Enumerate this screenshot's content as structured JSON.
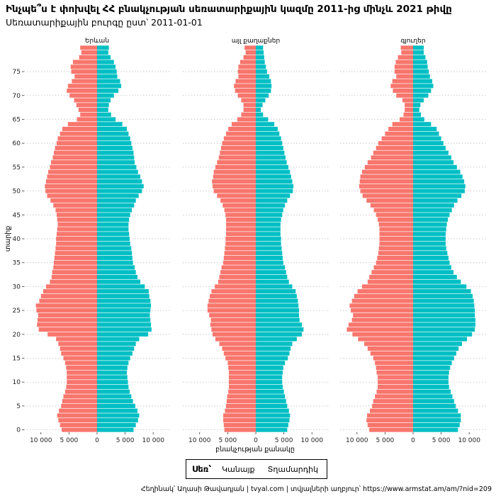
{
  "title": "Ինչպե՞ս է փոխվել ՀՀ բնակչության սեռատարիքային կազմը 2011-ից մինչև 2021 թիվը",
  "subtitle": "Սեռատարիքային բուրգը ըստ՝ 2011-01-01",
  "caption": "Հեղինակ՝ Աղասի Թավադյան | tvyal.com | տվյալների աղբյուր՝ https://www.armstat.am/am/?nid=209",
  "legend": {
    "title": "Սեռ՝",
    "items": [
      {
        "label": "Կանայք",
        "color": "#F8766D"
      },
      {
        "label": "Տղամարդիկ",
        "color": "#00BFC4"
      }
    ]
  },
  "chart_data": {
    "type": "bar",
    "orientation": "horizontal",
    "xlabel": "բնակչության քանակը",
    "ylabel": "տարիք",
    "xlim": [
      -13000,
      13000
    ],
    "x_ticks": [
      -10000,
      -5000,
      0,
      5000,
      10000
    ],
    "x_tick_labels": [
      "10 000",
      "5 000",
      "0",
      "5 000",
      "10 000"
    ],
    "y_ticks": [
      0,
      5,
      10,
      15,
      20,
      25,
      30,
      35,
      40,
      45,
      50,
      55,
      60,
      65,
      70,
      75
    ],
    "y_tick_labels": [
      "0",
      "5",
      "10",
      "15",
      "20",
      "25",
      "30",
      "35",
      "40",
      "45",
      "50",
      "55",
      "60",
      "65",
      "70",
      "75"
    ],
    "ages": [
      0,
      1,
      2,
      3,
      4,
      5,
      6,
      7,
      8,
      9,
      10,
      11,
      12,
      13,
      14,
      15,
      16,
      17,
      18,
      19,
      20,
      21,
      22,
      23,
      24,
      25,
      26,
      27,
      28,
      29,
      30,
      31,
      32,
      33,
      34,
      35,
      36,
      37,
      38,
      39,
      40,
      41,
      42,
      43,
      44,
      45,
      46,
      47,
      48,
      49,
      50,
      51,
      52,
      53,
      54,
      55,
      56,
      57,
      58,
      59,
      60,
      61,
      62,
      63,
      64,
      65,
      66,
      67,
      68,
      69,
      70,
      71,
      72,
      73,
      74,
      75,
      76,
      77,
      78,
      79,
      80
    ],
    "grid": "dotted horizontal",
    "panels": [
      {
        "title": "Երևան",
        "series": [
          {
            "name": "Կանայք",
            "values": [
              6300,
              6600,
              6900,
              7100,
              6800,
              6400,
              6200,
              6000,
              5700,
              5500,
              5400,
              5400,
              5400,
              5500,
              5700,
              6000,
              6400,
              6600,
              6900,
              7300,
              8800,
              10400,
              10700,
              10600,
              10500,
              10800,
              10900,
              10300,
              10000,
              9600,
              9100,
              8400,
              8100,
              8000,
              7800,
              7700,
              7600,
              7500,
              7400,
              7300,
              7300,
              7200,
              7100,
              7000,
              7100,
              7200,
              7400,
              7800,
              8300,
              8900,
              9200,
              9300,
              9100,
              8900,
              8700,
              8400,
              8200,
              7900,
              7700,
              7500,
              7200,
              7000,
              6600,
              6200,
              5200,
              3600,
              3000,
              3300,
              3700,
              4100,
              4900,
              5400,
              5200,
              4500,
              4000,
              4600,
              4700,
              4300,
              3200,
              2800,
              3000
            ]
          },
          {
            "name": "Տղամարդիկ",
            "values": [
              6500,
              6900,
              7300,
              7500,
              7200,
              6800,
              6400,
              6100,
              5800,
              5600,
              5500,
              5400,
              5300,
              5400,
              5600,
              5900,
              6300,
              6600,
              6900,
              7500,
              9100,
              9700,
              9600,
              9500,
              9400,
              9500,
              9600,
              9500,
              9300,
              9200,
              8500,
              7700,
              7200,
              6900,
              6700,
              6400,
              6300,
              6200,
              6100,
              5900,
              5800,
              5700,
              5600,
              5600,
              5700,
              5900,
              6200,
              6600,
              6900,
              7400,
              8000,
              8300,
              8000,
              7700,
              7300,
              7000,
              6700,
              6600,
              6500,
              6300,
              6100,
              5900,
              5600,
              5300,
              4500,
              3300,
              2500,
              2000,
              2100,
              2400,
              3000,
              3800,
              4300,
              4100,
              3600,
              3500,
              3300,
              3000,
              2400,
              2000,
              2100
            ]
          }
        ]
      },
      {
        "title": "այլ քաղաքներ",
        "series": [
          {
            "name": "Կանայք",
            "values": [
              5600,
              5700,
              5800,
              5800,
              5500,
              5300,
              5200,
              5100,
              4900,
              4800,
              4800,
              4800,
              4800,
              4900,
              5000,
              5400,
              5700,
              6000,
              6500,
              7200,
              7700,
              7900,
              8100,
              8000,
              8300,
              8600,
              8600,
              8400,
              8200,
              7900,
              7300,
              6700,
              6500,
              6300,
              6100,
              5800,
              5700,
              5600,
              5500,
              5400,
              5400,
              5300,
              5300,
              5300,
              5300,
              5400,
              5600,
              5900,
              6300,
              6900,
              7500,
              7700,
              7800,
              7600,
              7500,
              7200,
              6900,
              6600,
              6400,
              6200,
              6000,
              5700,
              5300,
              4900,
              4300,
              3300,
              2600,
              2200,
              2200,
              2600,
              3200,
              3700,
              3900,
              3600,
              3100,
              3200,
              3100,
              2800,
              2200,
              1800,
              2000
            ]
          },
          {
            "name": "Տղամարդիկ",
            "values": [
              5600,
              5800,
              6000,
              6100,
              5900,
              5600,
              5400,
              5200,
              5000,
              4800,
              4700,
              4700,
              4800,
              4900,
              5200,
              5700,
              6000,
              6200,
              6500,
              7300,
              8200,
              8500,
              8200,
              7800,
              7700,
              7700,
              7600,
              7500,
              7300,
              7100,
              6500,
              5900,
              5600,
              5400,
              5200,
              4900,
              4800,
              4700,
              4600,
              4500,
              4500,
              4400,
              4400,
              4400,
              4500,
              4700,
              4900,
              5200,
              5600,
              6100,
              6600,
              6700,
              6500,
              6300,
              6100,
              5800,
              5500,
              5300,
              5100,
              4900,
              4700,
              4500,
              4200,
              3900,
              3300,
              2200,
              1300,
              900,
              1200,
              1700,
              2300,
              2700,
              2800,
              2700,
              2400,
              2000,
              1800,
              1600,
              1500,
              1400,
              1300
            ]
          }
        ]
      },
      {
        "title": "գյուղեր",
        "series": [
          {
            "name": "Կանայք",
            "values": [
              7800,
              8100,
              8300,
              8200,
              7700,
              7300,
              7100,
              6800,
              6500,
              6300,
              6300,
              6300,
              6500,
              6600,
              6800,
              7100,
              7600,
              8100,
              8700,
              9800,
              10800,
              11800,
              11500,
              10900,
              10700,
              11100,
              11300,
              10900,
              10500,
              9900,
              9100,
              8100,
              7800,
              7400,
              7000,
              6600,
              6400,
              6200,
              6100,
              6000,
              6000,
              6000,
              6000,
              6100,
              6300,
              6600,
              7000,
              7600,
              8300,
              9000,
              9400,
              9600,
              9500,
              9400,
              9100,
              8600,
              8100,
              7500,
              7100,
              6600,
              6200,
              5600,
              5000,
              4400,
              3700,
              2400,
              1700,
              1500,
              1500,
              1900,
              3000,
              3600,
              4000,
              3700,
              3000,
              3300,
              3300,
              3100,
              2700,
              2100,
              2200
            ]
          },
          {
            "name": "Տղամարդիկ",
            "values": [
              8000,
              8300,
              8500,
              8500,
              8000,
              7600,
              7300,
              7000,
              6700,
              6400,
              6300,
              6300,
              6400,
              6600,
              6900,
              7300,
              7700,
              8100,
              8700,
              9600,
              10500,
              11000,
              11100,
              11100,
              11000,
              11000,
              10900,
              10800,
              10600,
              10300,
              9500,
              8500,
              7800,
              7200,
              6800,
              6500,
              6300,
              6100,
              5900,
              5800,
              5800,
              5800,
              5900,
              6000,
              6200,
              6500,
              6900,
              7300,
              7900,
              8600,
              9200,
              9300,
              9100,
              8800,
              8400,
              7800,
              7200,
              6800,
              6300,
              5800,
              5400,
              5000,
              4600,
              4200,
              3200,
              2000,
              1400,
              1100,
              1300,
              1900,
              2700,
              3200,
              3600,
              3400,
              3000,
              2800,
              2600,
              2500,
              2200,
              1900,
              1900
            ]
          }
        ]
      }
    ]
  }
}
